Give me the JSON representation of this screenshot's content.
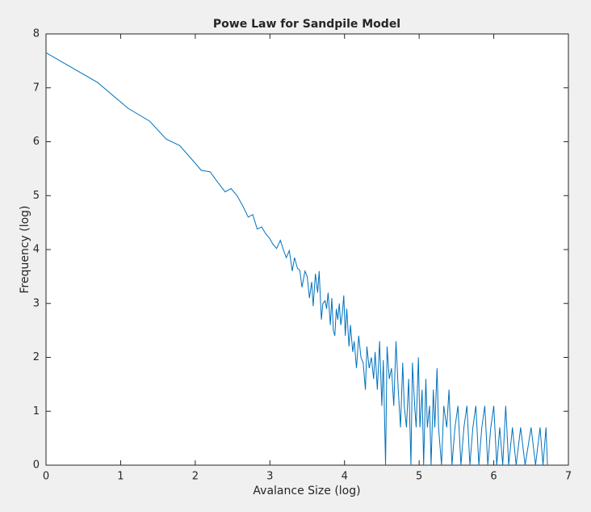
{
  "chart_data": {
    "type": "line",
    "title": "Powe Law for Sandpile Model",
    "xlabel": "Avalance Size (log)",
    "ylabel": "Frequency (log)",
    "x": [
      0,
      0.69,
      1.1,
      1.39,
      1.61,
      1.79,
      1.95,
      2.08,
      2.2,
      2.3,
      2.4,
      2.48,
      2.56,
      2.64,
      2.71,
      2.77,
      2.83,
      2.89,
      2.94,
      3.0,
      3.04,
      3.09,
      3.14,
      3.18,
      3.22,
      3.26,
      3.3,
      3.33,
      3.37,
      3.4,
      3.43,
      3.47,
      3.5,
      3.53,
      3.56,
      3.58,
      3.61,
      3.64,
      3.66,
      3.69,
      3.71,
      3.74,
      3.76,
      3.78,
      3.81,
      3.83,
      3.85,
      3.87,
      3.89,
      3.91,
      3.93,
      3.95,
      3.97,
      3.99,
      4.01,
      4.03,
      4.06,
      4.08,
      4.11,
      4.13,
      4.16,
      4.19,
      4.22,
      4.25,
      4.28,
      4.3,
      4.33,
      4.36,
      4.39,
      4.41,
      4.44,
      4.47,
      4.5,
      4.52,
      4.55,
      4.57,
      4.6,
      4.63,
      4.66,
      4.69,
      4.72,
      4.75,
      4.78,
      4.8,
      4.83,
      4.86,
      4.89,
      4.91,
      4.94,
      4.96,
      4.99,
      5.01,
      5.04,
      5.06,
      5.09,
      5.11,
      5.14,
      5.16,
      5.19,
      5.21,
      5.24,
      5.26,
      5.3,
      5.33,
      5.37,
      5.4,
      5.44,
      5.48,
      5.52,
      5.56,
      5.6,
      5.64,
      5.68,
      5.72,
      5.76,
      5.8,
      5.84,
      5.88,
      5.92,
      5.96,
      6.0,
      6.04,
      6.08,
      6.12,
      6.16,
      6.2,
      6.25,
      6.3,
      6.36,
      6.42,
      6.5,
      6.56,
      6.62,
      6.66,
      6.7,
      6.72
    ],
    "values": [
      7.65,
      7.1,
      6.62,
      6.38,
      6.05,
      5.93,
      5.68,
      5.47,
      5.44,
      5.25,
      5.07,
      5.13,
      5.0,
      4.8,
      4.6,
      4.65,
      4.38,
      4.42,
      4.3,
      4.2,
      4.1,
      4.02,
      4.17,
      4.0,
      3.85,
      3.98,
      3.6,
      3.85,
      3.65,
      3.62,
      3.3,
      3.6,
      3.5,
      3.1,
      3.4,
      2.95,
      3.55,
      3.2,
      3.6,
      2.7,
      3.0,
      3.05,
      2.9,
      3.2,
      2.6,
      3.1,
      2.5,
      2.4,
      2.9,
      2.7,
      3.0,
      2.6,
      2.8,
      3.15,
      2.4,
      2.9,
      2.2,
      2.6,
      2.1,
      2.3,
      1.8,
      2.4,
      2.0,
      1.9,
      1.4,
      2.2,
      1.8,
      2.0,
      1.6,
      2.1,
      1.4,
      2.3,
      1.1,
      1.95,
      0,
      2.2,
      1.6,
      1.8,
      1.1,
      2.3,
      1.4,
      0.7,
      1.9,
      1.1,
      0.7,
      1.6,
      0,
      1.9,
      1.1,
      0.7,
      2.0,
      0.7,
      1.4,
      0,
      1.6,
      0.7,
      1.1,
      0,
      1.4,
      0.7,
      1.8,
      0.7,
      0,
      1.1,
      0.7,
      1.4,
      0,
      0.7,
      1.1,
      0,
      0.7,
      1.1,
      0,
      0.7,
      1.1,
      0,
      0.7,
      1.1,
      0,
      0.7,
      1.1,
      0,
      0.7,
      0,
      1.1,
      0,
      0.7,
      0,
      0.7,
      0,
      0.7,
      0,
      0.7,
      0,
      0.7,
      0
    ],
    "color": "#0072bd",
    "xlim": [
      0,
      7
    ],
    "xticks": [
      0,
      1,
      2,
      3,
      4,
      5,
      6,
      7
    ],
    "ylim": [
      0,
      8
    ],
    "yticks": [
      0,
      1,
      2,
      3,
      4,
      5,
      6,
      7,
      8
    ]
  }
}
